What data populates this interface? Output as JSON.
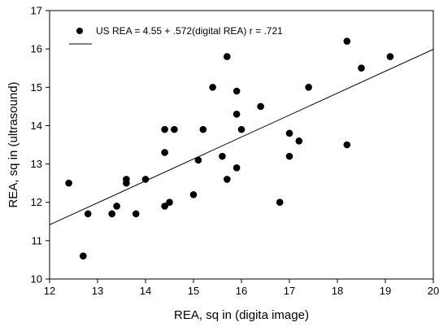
{
  "chart_data": {
    "type": "scatter",
    "xlabel": "REA, sq in (digita image)",
    "ylabel": "REA, sq in (ultrasound)",
    "xlim": [
      12,
      20
    ],
    "ylim": [
      10,
      17
    ],
    "xticks": [
      12,
      13,
      14,
      15,
      16,
      17,
      18,
      19,
      20
    ],
    "yticks": [
      10,
      11,
      12,
      13,
      14,
      15,
      16,
      17
    ],
    "grid": false,
    "legend": {
      "placement": "top-left",
      "entries": [
        {
          "symbol": "marker",
          "label": "US REA = 4.55 + .572(digital REA) r = .721"
        },
        {
          "symbol": "line",
          "label": ""
        }
      ]
    },
    "regression_line": {
      "intercept": 4.55,
      "slope": 0.572,
      "x_range": [
        12,
        20
      ]
    },
    "points": [
      {
        "x": 12.4,
        "y": 12.5
      },
      {
        "x": 12.7,
        "y": 10.6
      },
      {
        "x": 12.8,
        "y": 11.7
      },
      {
        "x": 13.3,
        "y": 11.7
      },
      {
        "x": 13.4,
        "y": 11.9
      },
      {
        "x": 13.6,
        "y": 12.5
      },
      {
        "x": 13.6,
        "y": 12.6
      },
      {
        "x": 13.8,
        "y": 11.7
      },
      {
        "x": 14.0,
        "y": 12.6
      },
      {
        "x": 14.4,
        "y": 11.9
      },
      {
        "x": 14.4,
        "y": 13.3
      },
      {
        "x": 14.4,
        "y": 13.9
      },
      {
        "x": 14.5,
        "y": 12.0
      },
      {
        "x": 14.6,
        "y": 13.9
      },
      {
        "x": 15.0,
        "y": 12.2
      },
      {
        "x": 15.1,
        "y": 13.1
      },
      {
        "x": 15.2,
        "y": 13.9
      },
      {
        "x": 15.4,
        "y": 15.0
      },
      {
        "x": 15.6,
        "y": 13.2
      },
      {
        "x": 15.7,
        "y": 15.8
      },
      {
        "x": 15.7,
        "y": 12.6
      },
      {
        "x": 15.9,
        "y": 14.9
      },
      {
        "x": 15.9,
        "y": 14.3
      },
      {
        "x": 15.9,
        "y": 12.9
      },
      {
        "x": 16.0,
        "y": 13.9
      },
      {
        "x": 16.4,
        "y": 14.5
      },
      {
        "x": 16.8,
        "y": 12.0
      },
      {
        "x": 17.0,
        "y": 13.8
      },
      {
        "x": 17.0,
        "y": 13.2
      },
      {
        "x": 17.2,
        "y": 13.6
      },
      {
        "x": 17.4,
        "y": 15.0
      },
      {
        "x": 18.2,
        "y": 16.2
      },
      {
        "x": 18.2,
        "y": 13.5
      },
      {
        "x": 18.5,
        "y": 15.5
      },
      {
        "x": 19.1,
        "y": 15.8
      }
    ]
  }
}
